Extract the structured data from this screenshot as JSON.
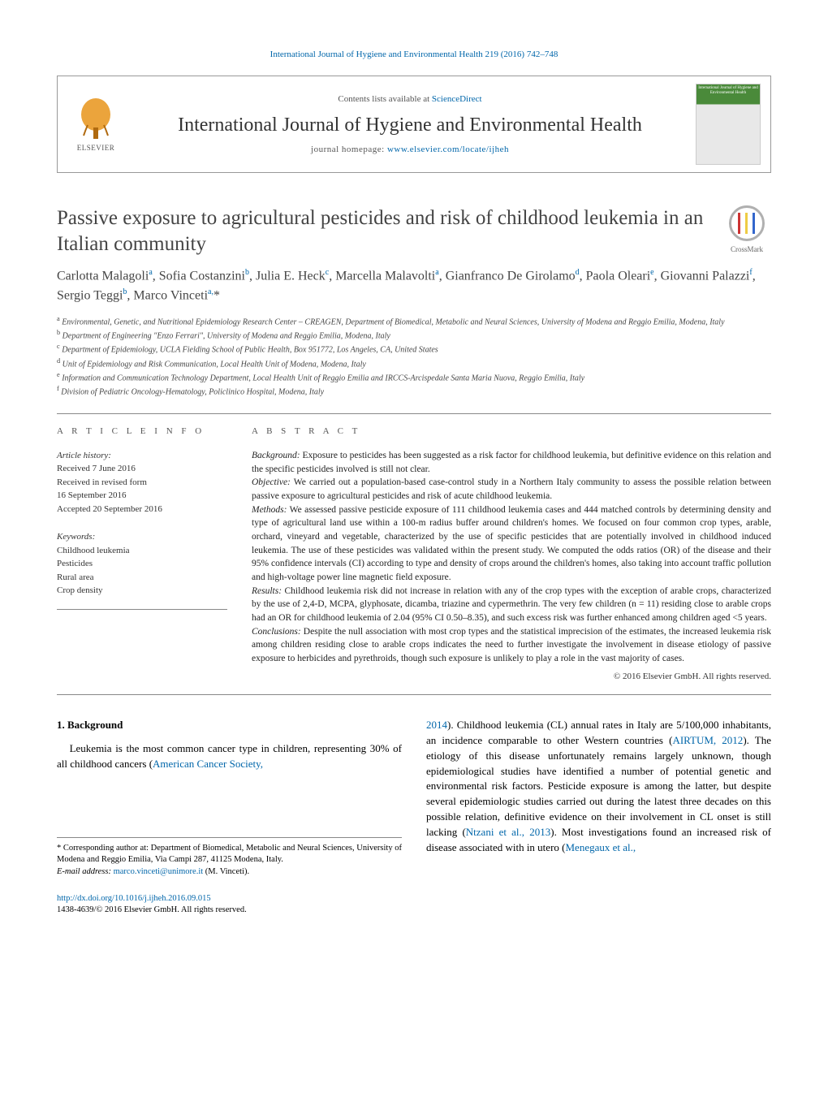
{
  "header": {
    "citation": "International Journal of Hygiene and Environmental Health 219 (2016) 742–748",
    "contents_prefix": "Contents lists available at ",
    "contents_link": "ScienceDirect",
    "journal_name": "International Journal of Hygiene and Environmental Health",
    "homepage_prefix": "journal homepage: ",
    "homepage_url": "www.elsevier.com/locate/ijheh",
    "elsevier_label": "ELSEVIER",
    "cover_text": "International Journal of Hygiene and Environmental Health",
    "crossmark_label": "CrossMark"
  },
  "article": {
    "title": "Passive exposure to agricultural pesticides and risk of childhood leukemia in an Italian community",
    "authors_html": "Carlotta Malagoli<sup>a</sup>, Sofia Costanzini<sup>b</sup>, Julia E. Heck<sup>c</sup>, Marcella Malavolti<sup>a</sup>, Gianfranco De Girolamo<sup>d</sup>, Paola Oleari<sup>e</sup>, Giovanni Palazzi<sup>f</sup>, Sergio Teggi<sup>b</sup>, Marco Vinceti<sup>a,</sup>*",
    "affiliations": [
      "a Environmental, Genetic, and Nutritional Epidemiology Research Center – CREAGEN, Department of Biomedical, Metabolic and Neural Sciences, University of Modena and Reggio Emilia, Modena, Italy",
      "b Department of Engineering \"Enzo Ferrari\", University of Modena and Reggio Emilia, Modena, Italy",
      "c Department of Epidemiology, UCLA Fielding School of Public Health, Box 951772, Los Angeles, CA, United States",
      "d Unit of Epidemiology and Risk Communication, Local Health Unit of Modena, Modena, Italy",
      "e Information and Communication Technology Department, Local Health Unit of Reggio Emilia and IRCCS-Arcispedale Santa Maria Nuova, Reggio Emilia, Italy",
      "f Division of Pediatric Oncology-Hematology, Policlinico Hospital, Modena, Italy"
    ]
  },
  "info": {
    "heading": "a r t i c l e   i n f o",
    "history_label": "Article history:",
    "history": [
      "Received 7 June 2016",
      "Received in revised form",
      "16 September 2016",
      "Accepted 20 September 2016"
    ],
    "keywords_label": "Keywords:",
    "keywords": [
      "Childhood leukemia",
      "Pesticides",
      "Rural area",
      "Crop density"
    ]
  },
  "abstract": {
    "heading": "a b s t r a c t",
    "sections": [
      {
        "label": "Background:",
        "text": " Exposure to pesticides has been suggested as a risk factor for childhood leukemia, but definitive evidence on this relation and the specific pesticides involved is still not clear."
      },
      {
        "label": "Objective:",
        "text": " We carried out a population-based case-control study in a Northern Italy community to assess the possible relation between passive exposure to agricultural pesticides and risk of acute childhood leukemia."
      },
      {
        "label": "Methods:",
        "text": " We assessed passive pesticide exposure of 111 childhood leukemia cases and 444 matched controls by determining density and type of agricultural land use within a 100-m radius buffer around children's homes. We focused on four common crop types, arable, orchard, vineyard and vegetable, characterized by the use of specific pesticides that are potentially involved in childhood induced leukemia. The use of these pesticides was validated within the present study. We computed the odds ratios (OR) of the disease and their 95% confidence intervals (CI) according to type and density of crops around the children's homes, also taking into account traffic pollution and high-voltage power line magnetic field exposure."
      },
      {
        "label": "Results:",
        "text": " Childhood leukemia risk did not increase in relation with any of the crop types with the exception of arable crops, characterized by the use of 2,4-D, MCPA, glyphosate, dicamba, triazine and cypermethrin. The very few children (n = 11) residing close to arable crops had an OR for childhood leukemia of 2.04 (95% CI 0.50–8.35), and such excess risk was further enhanced among children aged <5 years."
      },
      {
        "label": "Conclusions:",
        "text": " Despite the null association with most crop types and the statistical imprecision of the estimates, the increased leukemia risk among children residing close to arable crops indicates the need to further investigate the involvement in disease etiology of passive exposure to herbicides and pyrethroids, though such exposure is unlikely to play a role in the vast majority of cases."
      }
    ],
    "copyright": "© 2016 Elsevier GmbH. All rights reserved."
  },
  "body": {
    "heading": "1. Background",
    "col1_pre": "Leukemia is the most common cancer type in children, representing 30% of all childhood cancers (",
    "col1_link": "American Cancer Society,",
    "col2_link1": "2014",
    "col2_t1": "). Childhood leukemia (CL) annual rates in Italy are 5/100,000 inhabitants, an incidence comparable to other Western countries (",
    "col2_link2": "AIRTUM, 2012",
    "col2_t2": "). The etiology of this disease unfortunately remains largely unknown, though epidemiological studies have identified a number of potential genetic and environmental risk factors. Pesticide exposure is among the latter, but despite several epidemiologic studies carried out during the latest three decades on this possible relation, definitive evidence on their involvement in CL onset is still lacking (",
    "col2_link3": "Ntzani et al., 2013",
    "col2_t3": "). Most investigations found an increased risk of disease associated with in utero (",
    "col2_link4": "Menegaux et al.,"
  },
  "footnotes": {
    "corr": "* Corresponding author at: Department of Biomedical, Metabolic and Neural Sciences, University of Modena and Reggio Emilia, Via Campi 287, 41125 Modena, Italy.",
    "email_label": "E-mail address: ",
    "email": "marco.vinceti@unimore.it",
    "email_suffix": " (M. Vinceti).",
    "doi": "http://dx.doi.org/10.1016/j.ijheh.2016.09.015",
    "issn": "1438-4639/© 2016 Elsevier GmbH. All rights reserved."
  },
  "colors": {
    "link": "#0066aa",
    "text": "#222222",
    "border": "#888888"
  }
}
